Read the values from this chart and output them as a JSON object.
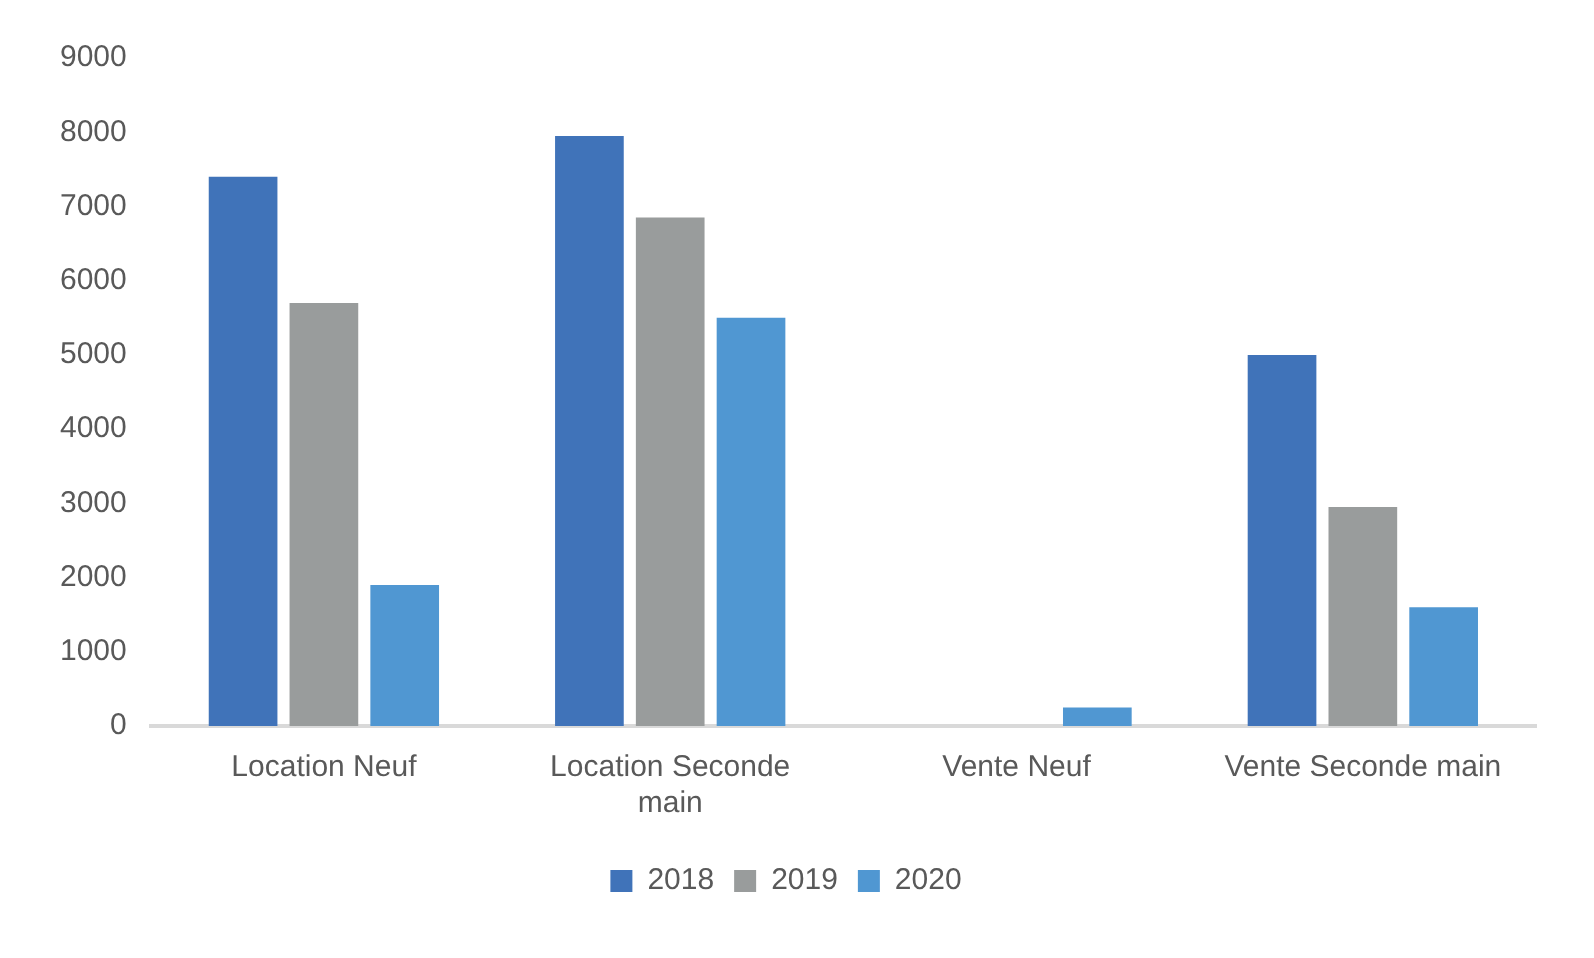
{
  "chart_data": {
    "type": "bar",
    "categories": [
      "Location Neuf",
      "Location Seconde main",
      "Vente Neuf",
      "Vente Seconde main"
    ],
    "series": [
      {
        "name": "2018",
        "color": "#4073b9",
        "values": [
          7400,
          7950,
          0,
          5000
        ]
      },
      {
        "name": "2019",
        "color": "#999c9c",
        "values": [
          5700,
          6850,
          0,
          2950
        ]
      },
      {
        "name": "2020",
        "color": "#5097d2",
        "values": [
          1900,
          5500,
          250,
          1600
        ]
      }
    ],
    "ylim": [
      0,
      9000
    ],
    "yticks": [
      0,
      1000,
      2000,
      3000,
      4000,
      5000,
      6000,
      7000,
      8000,
      9000
    ],
    "grid": false,
    "legend": "bottom"
  }
}
